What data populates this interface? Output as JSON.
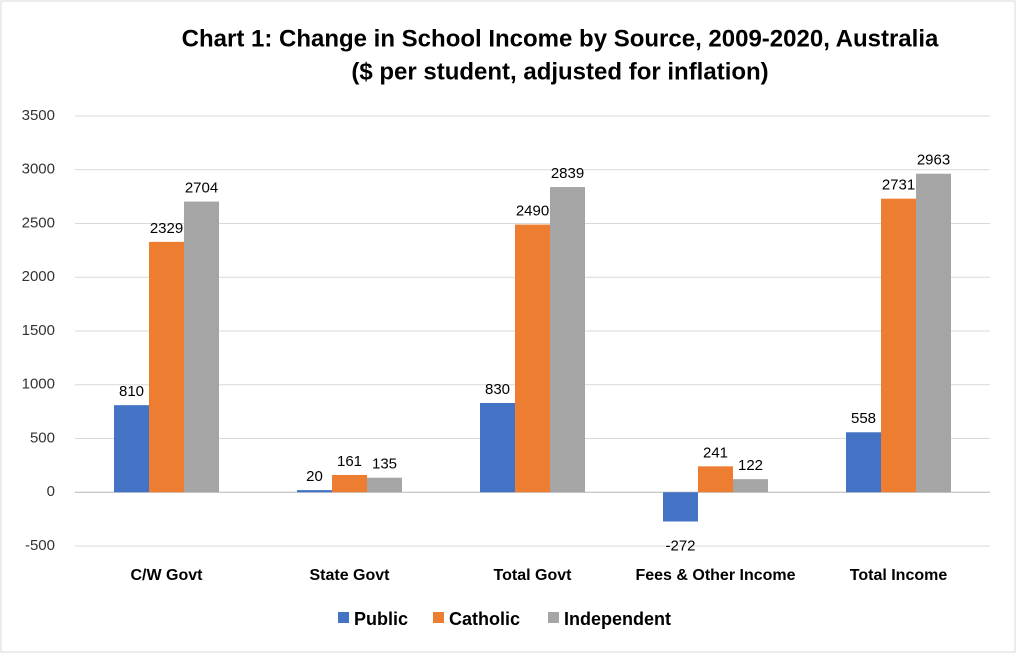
{
  "chart_data": {
    "type": "bar",
    "title": "Chart 1: Change in School Income by Source, 2009-2020, Australia",
    "subtitle": "($ per student, adjusted for inflation)",
    "categories": [
      "C/W Govt",
      "State Govt",
      "Total Govt",
      "Fees & Other Income",
      "Total Income"
    ],
    "series": [
      {
        "name": "Public",
        "color": "#4472c4",
        "values": [
          810,
          20,
          830,
          -272,
          558
        ]
      },
      {
        "name": "Catholic",
        "color": "#ed7d31",
        "values": [
          2329,
          161,
          2490,
          241,
          2731
        ]
      },
      {
        "name": "Independent",
        "color": "#a5a5a5",
        "values": [
          2704,
          135,
          2839,
          122,
          2963
        ]
      }
    ],
    "ylim": [
      -500,
      3500
    ],
    "yticks": [
      -500,
      0,
      500,
      1000,
      1500,
      2000,
      2500,
      3000,
      3500
    ],
    "grid": true,
    "legend": "bottom"
  }
}
